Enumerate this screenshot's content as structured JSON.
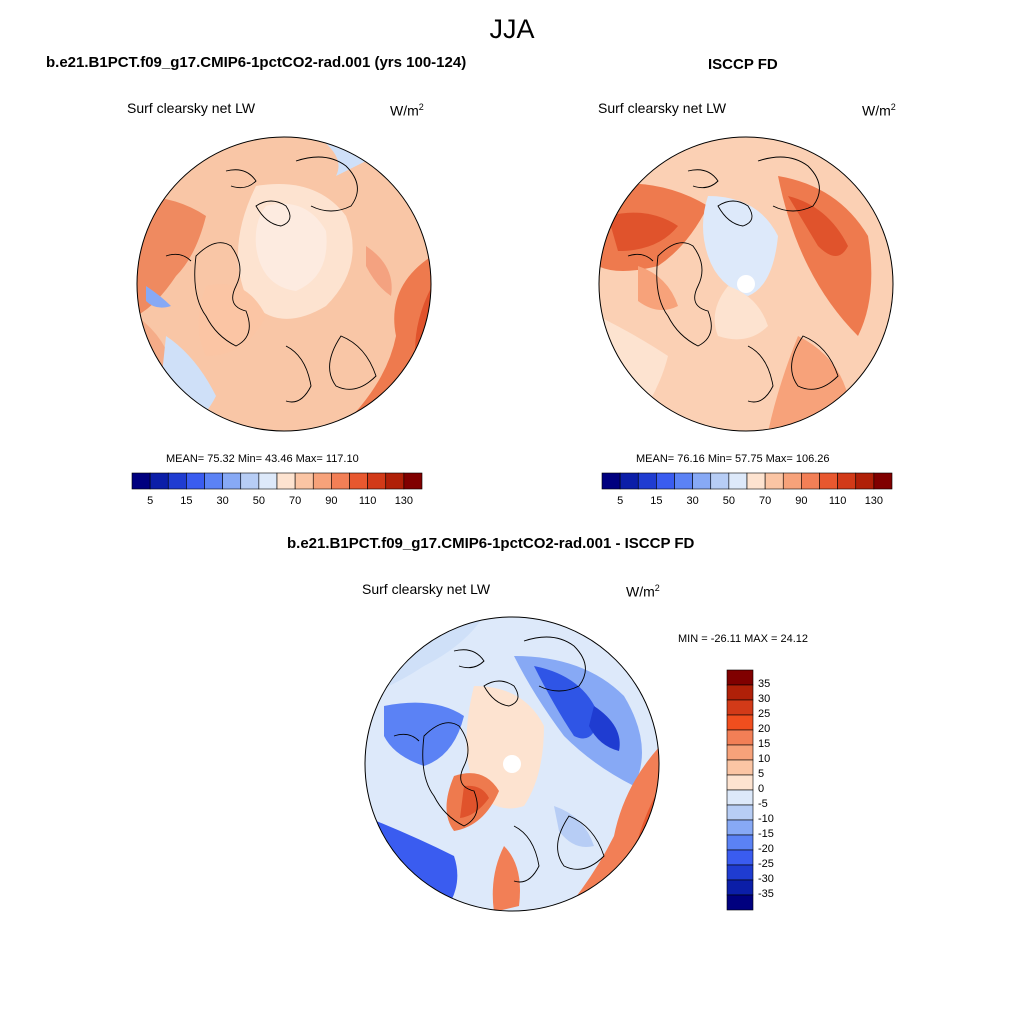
{
  "season": "JJA",
  "panels": [
    {
      "title": "b.e21.B1PCT.f09_g17.CMIP6-1pctCO2-rad.001 (yrs 100-124)",
      "subtitle": "Surf clearsky net LW",
      "units_base": "W/m",
      "units_exp": "2",
      "stats": "MEAN=  75.32  Min=  43.46  Max= 117.10"
    },
    {
      "title": "ISCCP FD",
      "subtitle": "Surf clearsky net LW",
      "units_base": "W/m",
      "units_exp": "2",
      "stats": "MEAN=  76.16  Min=  57.75  Max= 106.26"
    },
    {
      "title": "b.e21.B1PCT.f09_g17.CMIP6-1pctCO2-rad.001 - ISCCP FD",
      "subtitle": "Surf clearsky net LW",
      "units_base": "W/m",
      "units_exp": "2",
      "stats": "MIN = -26.11 MAX =  24.12"
    }
  ],
  "colorbar_abs": {
    "colors": [
      "#00007f",
      "#0b1ea8",
      "#1f3cd1",
      "#3a5cf0",
      "#5b82f5",
      "#87a9f5",
      "#b7cdf5",
      "#dde9fa",
      "#fde3d0",
      "#fbc5a4",
      "#f7a27a",
      "#f27f56",
      "#e8582f",
      "#d23a18",
      "#b02008",
      "#800000"
    ],
    "labels": [
      "5",
      "15",
      "30",
      "50",
      "70",
      "90",
      "110",
      "130"
    ]
  },
  "colorbar_diff": {
    "colors": [
      "#800000",
      "#b02008",
      "#d23a18",
      "#f04e1e",
      "#f27f56",
      "#f7a27a",
      "#fbc5a4",
      "#fde3d0",
      "#dde9fa",
      "#b7cdf5",
      "#87a9f5",
      "#5b82f5",
      "#3a5cf0",
      "#1f3cd1",
      "#0b1ea8",
      "#00007f"
    ],
    "labels": [
      "35",
      "30",
      "25",
      "20",
      "15",
      "10",
      "5",
      "0",
      "-5",
      "-10",
      "-15",
      "-20",
      "-25",
      "-30",
      "-35"
    ]
  },
  "map_colors": {
    "ocean_warm": "#f6b08e",
    "ocean_hot": "#ee7a4e",
    "ocean_hotter": "#e0532c",
    "pale": "#fde3d0",
    "light_blue": "#cfe0f8",
    "mid_blue": "#7fa5f3",
    "deep_blue": "#2f55e6",
    "coast": "#000000"
  }
}
